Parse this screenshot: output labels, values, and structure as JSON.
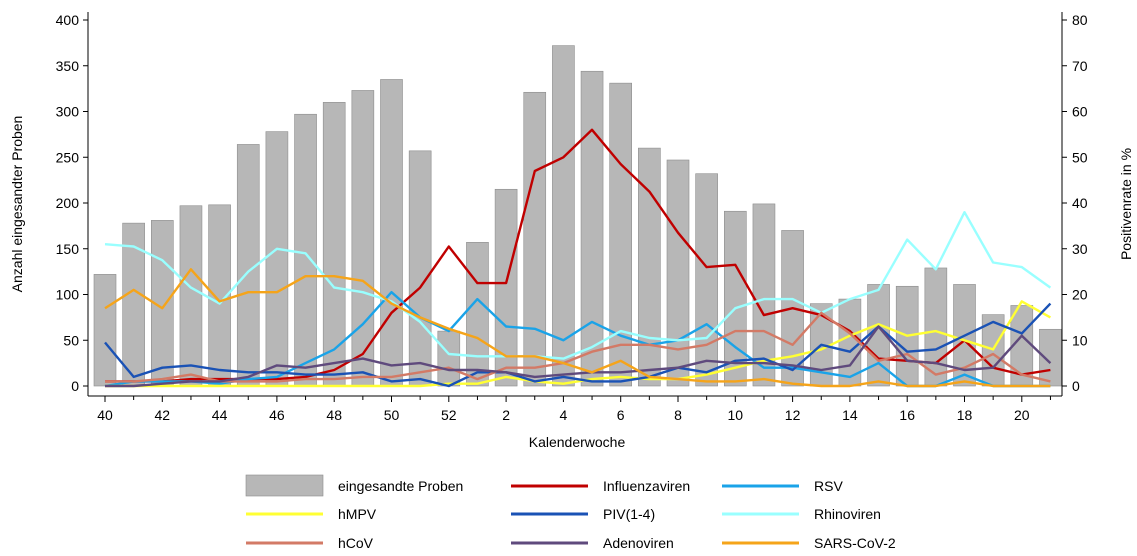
{
  "chart_data": {
    "type": "bar+line",
    "xlabel": "Kalenderwoche",
    "ylabel_left": "Anzahl eingesandter Proben",
    "ylabel_right": "Positivenrate in %",
    "ylim_left": [
      0,
      400
    ],
    "ylim_right": [
      0,
      80
    ],
    "yticks_left": [
      "0",
      "50",
      "100",
      "150",
      "200",
      "250",
      "300",
      "350",
      "400"
    ],
    "yticks_right": [
      "0",
      "10",
      "20",
      "30",
      "40",
      "50",
      "60",
      "70",
      "80"
    ],
    "weeks": [
      "40",
      "41",
      "42",
      "43",
      "44",
      "45",
      "46",
      "47",
      "48",
      "49",
      "50",
      "51",
      "52",
      "1",
      "2",
      "3",
      "4",
      "5",
      "6",
      "7",
      "8",
      "9",
      "10",
      "11",
      "12",
      "13",
      "14",
      "15",
      "16",
      "17",
      "18",
      "19",
      "20",
      "21"
    ],
    "tick_labels": [
      "40",
      "",
      "42",
      "",
      "44",
      "",
      "46",
      "",
      "48",
      "",
      "50",
      "",
      "52",
      "",
      "2",
      "",
      "4",
      "",
      "6",
      "",
      "8",
      "",
      "10",
      "",
      "12",
      "",
      "14",
      "",
      "16",
      "",
      "18",
      "",
      "20",
      ""
    ],
    "bars": {
      "name": "eingesandte Proben",
      "color": "#b7b7b7",
      "values": [
        122,
        178,
        181,
        197,
        198,
        264,
        278,
        297,
        310,
        323,
        335,
        257,
        60,
        157,
        215,
        321,
        372,
        344,
        331,
        260,
        247,
        232,
        191,
        199,
        170,
        90,
        95,
        111,
        109,
        129,
        111,
        78,
        88,
        62
      ]
    },
    "series": [
      {
        "name": "Influenzaviren",
        "color": "#c00000",
        "values": [
          1,
          1,
          1,
          1.5,
          1.5,
          1.5,
          1.5,
          2,
          3.5,
          7,
          16,
          21.5,
          30.5,
          22.5,
          22.5,
          47,
          50,
          56,
          48.5,
          42.5,
          33.5,
          26,
          26.5,
          15.5,
          17,
          15.5,
          12,
          6,
          5.5,
          5,
          10,
          4,
          2.5,
          3.5
        ]
      },
      {
        "name": "RSV",
        "color": "#1aa3e8",
        "values": [
          0,
          1,
          1,
          1,
          0.5,
          1.5,
          2,
          5,
          8,
          13.5,
          20.5,
          15,
          12,
          19,
          13,
          12.5,
          10,
          14,
          11,
          9,
          10,
          13.5,
          8.5,
          4,
          4,
          3,
          2,
          5,
          0,
          0,
          2.5,
          0,
          0,
          0
        ]
      },
      {
        "name": "hMPV",
        "color": "#ffff33",
        "values": [
          0,
          0,
          0,
          0,
          0,
          0,
          0,
          0,
          0,
          0,
          0,
          0,
          0.5,
          0.5,
          2,
          1,
          0.5,
          1.5,
          2,
          1.5,
          1.5,
          2.5,
          4,
          5.5,
          6.5,
          8,
          11,
          13.5,
          11,
          12,
          10,
          8,
          18.5,
          15
        ]
      },
      {
        "name": "PIV(1-4)",
        "color": "#1a52b5",
        "values": [
          9.5,
          2,
          4,
          4.5,
          3.5,
          3,
          3,
          2.5,
          2.5,
          3,
          1,
          1.5,
          0,
          3,
          3,
          1,
          2,
          1,
          1,
          2,
          4,
          3,
          5.5,
          6,
          3.5,
          9,
          7.5,
          13,
          7.5,
          8,
          11,
          14,
          11.5,
          18
        ]
      },
      {
        "name": "Rhinoviren",
        "color": "#99ffff",
        "values": [
          31,
          30.5,
          27.5,
          21.5,
          18,
          25,
          30,
          29,
          21.5,
          20.5,
          18.5,
          14,
          7,
          6.5,
          6.5,
          6.5,
          6,
          8.5,
          12,
          10.5,
          10,
          10.5,
          17,
          19,
          19,
          16,
          19,
          21,
          32,
          25.5,
          38,
          27,
          26,
          21.5
        ]
      },
      {
        "name": "hCoV",
        "color": "#d37a66",
        "values": [
          1,
          1,
          1.5,
          2.5,
          1,
          1,
          1,
          1.5,
          1.5,
          2,
          2,
          3,
          4,
          1.5,
          4,
          4,
          5,
          7.5,
          9,
          9,
          8,
          9,
          12,
          12,
          9,
          16,
          11.5,
          5.5,
          7,
          2.5,
          4,
          7,
          2.5,
          1
        ]
      },
      {
        "name": "Adenoviren",
        "color": "#5f4a7d",
        "values": [
          0,
          0,
          0.5,
          1,
          1,
          2,
          4.5,
          4,
          5,
          6,
          4.5,
          5,
          3.5,
          3.5,
          3,
          2,
          2.5,
          3,
          3,
          3.5,
          4,
          5.5,
          5,
          5,
          4.5,
          3.5,
          4.5,
          13,
          5.5,
          5,
          3.5,
          4,
          11,
          5
        ]
      },
      {
        "name": "SARS-CoV-2",
        "color": "#f5a41a",
        "values": [
          17,
          21,
          17,
          25.5,
          18.5,
          20.5,
          20.5,
          24,
          24,
          23,
          18,
          15,
          12.5,
          10.5,
          6.5,
          6.5,
          5,
          3,
          5.5,
          2,
          1.5,
          1,
          1,
          1.5,
          0.5,
          0,
          0,
          1,
          0,
          0,
          1,
          0,
          0,
          0
        ]
      }
    ],
    "legend": {
      "placement": "bottom",
      "entries": [
        {
          "label": "eingesandte Proben",
          "kind": "bar",
          "color": "#b7b7b7"
        },
        {
          "label": "Influenzaviren",
          "kind": "line",
          "color": "#c00000"
        },
        {
          "label": "RSV",
          "kind": "line",
          "color": "#1aa3e8"
        },
        {
          "label": "hMPV",
          "kind": "line",
          "color": "#ffff33"
        },
        {
          "label": "PIV(1-4)",
          "kind": "line",
          "color": "#1a52b5"
        },
        {
          "label": "Rhinoviren",
          "kind": "line",
          "color": "#99ffff"
        },
        {
          "label": "hCoV",
          "kind": "line",
          "color": "#d37a66"
        },
        {
          "label": "Adenoviren",
          "kind": "line",
          "color": "#5f4a7d"
        },
        {
          "label": "SARS-CoV-2",
          "kind": "line",
          "color": "#f5a41a"
        }
      ]
    },
    "grid": false
  }
}
